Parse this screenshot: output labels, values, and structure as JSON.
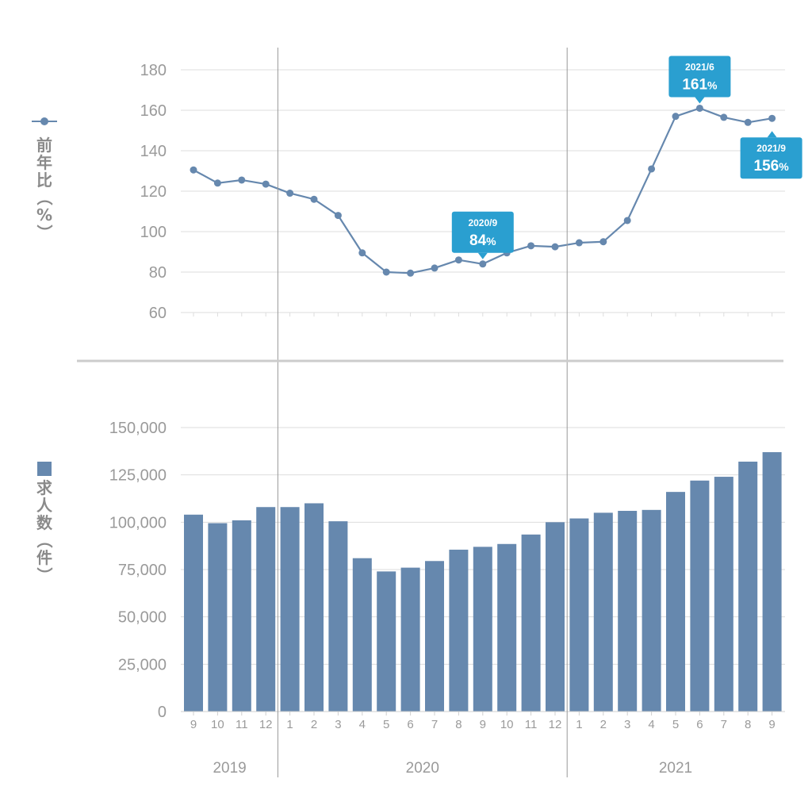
{
  "colors": {
    "series": "#6688ae",
    "callout": "#2a9fd0",
    "grid": "#dddddd",
    "tick": "#9a9a9a",
    "divider": "#cccccc",
    "yearline": "#999999"
  },
  "chart_data": [
    {
      "type": "line",
      "ylabel": "前年比（%）",
      "ylim": [
        60,
        180
      ],
      "yticks": [
        "180",
        "160",
        "140",
        "120",
        "100",
        "80",
        "60"
      ],
      "x": [
        "2019/9",
        "2019/10",
        "2019/11",
        "2019/12",
        "2020/1",
        "2020/2",
        "2020/3",
        "2020/4",
        "2020/5",
        "2020/6",
        "2020/7",
        "2020/8",
        "2020/9",
        "2020/10",
        "2020/11",
        "2020/12",
        "2021/1",
        "2021/2",
        "2021/3",
        "2021/4",
        "2021/5",
        "2021/6",
        "2021/7",
        "2021/8",
        "2021/9"
      ],
      "values": [
        130.5,
        124,
        125.5,
        123.5,
        119,
        116,
        108,
        89.5,
        80,
        79.5,
        82,
        86,
        84,
        89.5,
        93,
        92.5,
        94.5,
        95,
        105.5,
        131,
        157,
        161,
        156.5,
        154,
        156
      ],
      "callouts": [
        {
          "index": 12,
          "date": "2020/9",
          "value": "84",
          "unit": "%",
          "placement": "above"
        },
        {
          "index": 21,
          "date": "2021/6",
          "value": "161",
          "unit": "%",
          "placement": "above"
        },
        {
          "index": 24,
          "date": "2021/9",
          "value": "156",
          "unit": "%",
          "placement": "below"
        }
      ]
    },
    {
      "type": "bar",
      "ylabel": "求人数（件）",
      "ylim": [
        0,
        150000
      ],
      "yticks": [
        "150,000",
        "125,000",
        "100,000",
        "75,000",
        "50,000",
        "25,000",
        "0"
      ],
      "x": [
        "2019/9",
        "2019/10",
        "2019/11",
        "2019/12",
        "2020/1",
        "2020/2",
        "2020/3",
        "2020/4",
        "2020/5",
        "2020/6",
        "2020/7",
        "2020/8",
        "2020/9",
        "2020/10",
        "2020/11",
        "2020/12",
        "2021/1",
        "2021/2",
        "2021/3",
        "2021/4",
        "2021/5",
        "2021/6",
        "2021/7",
        "2021/8",
        "2021/9"
      ],
      "values": [
        104000,
        99500,
        101000,
        108000,
        108000,
        110000,
        100500,
        81000,
        74000,
        76000,
        79500,
        85500,
        87000,
        88500,
        93500,
        100000,
        102000,
        105000,
        106000,
        106500,
        116000,
        122000,
        124000,
        132000,
        137000
      ]
    }
  ],
  "x_axis": {
    "month_labels": [
      "9",
      "10",
      "11",
      "12",
      "1",
      "2",
      "3",
      "4",
      "5",
      "6",
      "7",
      "8",
      "9",
      "10",
      "11",
      "12",
      "1",
      "2",
      "3",
      "4",
      "5",
      "6",
      "7",
      "8",
      "9"
    ],
    "years": [
      {
        "label": "2019",
        "start": 0,
        "end": 3
      },
      {
        "label": "2020",
        "start": 4,
        "end": 15
      },
      {
        "label": "2021",
        "start": 16,
        "end": 24
      }
    ]
  }
}
